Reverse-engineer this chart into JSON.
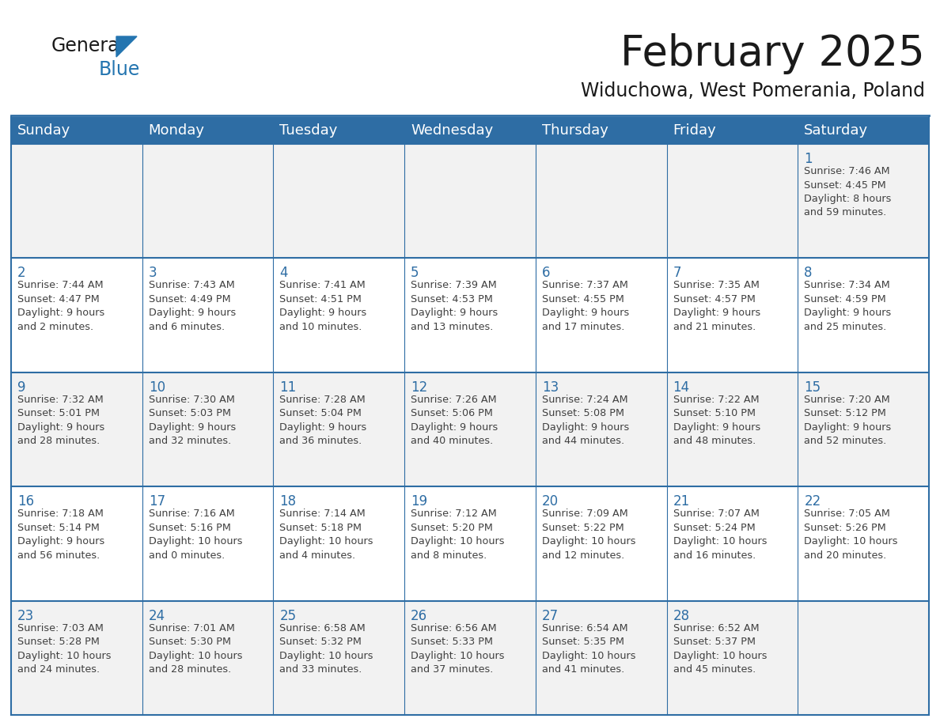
{
  "title": "February 2025",
  "subtitle": "Widuchowa, West Pomerania, Poland",
  "header_bg": "#2E6DA4",
  "header_text": "#FFFFFF",
  "cell_bg_odd": "#F2F2F2",
  "cell_bg_even": "#FFFFFF",
  "day_number_color": "#2E6DA4",
  "info_text_color": "#404040",
  "border_color": "#2E6DA4",
  "days_of_week": [
    "Sunday",
    "Monday",
    "Tuesday",
    "Wednesday",
    "Thursday",
    "Friday",
    "Saturday"
  ],
  "weeks": [
    [
      {
        "day": null,
        "info": ""
      },
      {
        "day": null,
        "info": ""
      },
      {
        "day": null,
        "info": ""
      },
      {
        "day": null,
        "info": ""
      },
      {
        "day": null,
        "info": ""
      },
      {
        "day": null,
        "info": ""
      },
      {
        "day": 1,
        "info": "Sunrise: 7:46 AM\nSunset: 4:45 PM\nDaylight: 8 hours\nand 59 minutes."
      }
    ],
    [
      {
        "day": 2,
        "info": "Sunrise: 7:44 AM\nSunset: 4:47 PM\nDaylight: 9 hours\nand 2 minutes."
      },
      {
        "day": 3,
        "info": "Sunrise: 7:43 AM\nSunset: 4:49 PM\nDaylight: 9 hours\nand 6 minutes."
      },
      {
        "day": 4,
        "info": "Sunrise: 7:41 AM\nSunset: 4:51 PM\nDaylight: 9 hours\nand 10 minutes."
      },
      {
        "day": 5,
        "info": "Sunrise: 7:39 AM\nSunset: 4:53 PM\nDaylight: 9 hours\nand 13 minutes."
      },
      {
        "day": 6,
        "info": "Sunrise: 7:37 AM\nSunset: 4:55 PM\nDaylight: 9 hours\nand 17 minutes."
      },
      {
        "day": 7,
        "info": "Sunrise: 7:35 AM\nSunset: 4:57 PM\nDaylight: 9 hours\nand 21 minutes."
      },
      {
        "day": 8,
        "info": "Sunrise: 7:34 AM\nSunset: 4:59 PM\nDaylight: 9 hours\nand 25 minutes."
      }
    ],
    [
      {
        "day": 9,
        "info": "Sunrise: 7:32 AM\nSunset: 5:01 PM\nDaylight: 9 hours\nand 28 minutes."
      },
      {
        "day": 10,
        "info": "Sunrise: 7:30 AM\nSunset: 5:03 PM\nDaylight: 9 hours\nand 32 minutes."
      },
      {
        "day": 11,
        "info": "Sunrise: 7:28 AM\nSunset: 5:04 PM\nDaylight: 9 hours\nand 36 minutes."
      },
      {
        "day": 12,
        "info": "Sunrise: 7:26 AM\nSunset: 5:06 PM\nDaylight: 9 hours\nand 40 minutes."
      },
      {
        "day": 13,
        "info": "Sunrise: 7:24 AM\nSunset: 5:08 PM\nDaylight: 9 hours\nand 44 minutes."
      },
      {
        "day": 14,
        "info": "Sunrise: 7:22 AM\nSunset: 5:10 PM\nDaylight: 9 hours\nand 48 minutes."
      },
      {
        "day": 15,
        "info": "Sunrise: 7:20 AM\nSunset: 5:12 PM\nDaylight: 9 hours\nand 52 minutes."
      }
    ],
    [
      {
        "day": 16,
        "info": "Sunrise: 7:18 AM\nSunset: 5:14 PM\nDaylight: 9 hours\nand 56 minutes."
      },
      {
        "day": 17,
        "info": "Sunrise: 7:16 AM\nSunset: 5:16 PM\nDaylight: 10 hours\nand 0 minutes."
      },
      {
        "day": 18,
        "info": "Sunrise: 7:14 AM\nSunset: 5:18 PM\nDaylight: 10 hours\nand 4 minutes."
      },
      {
        "day": 19,
        "info": "Sunrise: 7:12 AM\nSunset: 5:20 PM\nDaylight: 10 hours\nand 8 minutes."
      },
      {
        "day": 20,
        "info": "Sunrise: 7:09 AM\nSunset: 5:22 PM\nDaylight: 10 hours\nand 12 minutes."
      },
      {
        "day": 21,
        "info": "Sunrise: 7:07 AM\nSunset: 5:24 PM\nDaylight: 10 hours\nand 16 minutes."
      },
      {
        "day": 22,
        "info": "Sunrise: 7:05 AM\nSunset: 5:26 PM\nDaylight: 10 hours\nand 20 minutes."
      }
    ],
    [
      {
        "day": 23,
        "info": "Sunrise: 7:03 AM\nSunset: 5:28 PM\nDaylight: 10 hours\nand 24 minutes."
      },
      {
        "day": 24,
        "info": "Sunrise: 7:01 AM\nSunset: 5:30 PM\nDaylight: 10 hours\nand 28 minutes."
      },
      {
        "day": 25,
        "info": "Sunrise: 6:58 AM\nSunset: 5:32 PM\nDaylight: 10 hours\nand 33 minutes."
      },
      {
        "day": 26,
        "info": "Sunrise: 6:56 AM\nSunset: 5:33 PM\nDaylight: 10 hours\nand 37 minutes."
      },
      {
        "day": 27,
        "info": "Sunrise: 6:54 AM\nSunset: 5:35 PM\nDaylight: 10 hours\nand 41 minutes."
      },
      {
        "day": 28,
        "info": "Sunrise: 6:52 AM\nSunset: 5:37 PM\nDaylight: 10 hours\nand 45 minutes."
      },
      {
        "day": null,
        "info": ""
      }
    ]
  ],
  "logo_general_color": "#1a1a1a",
  "logo_blue_color": "#2475B0",
  "title_fontsize": 38,
  "subtitle_fontsize": 17,
  "header_fontsize": 13,
  "day_num_fontsize": 12,
  "info_fontsize": 9.2,
  "fig_bg": "#FFFFFF"
}
